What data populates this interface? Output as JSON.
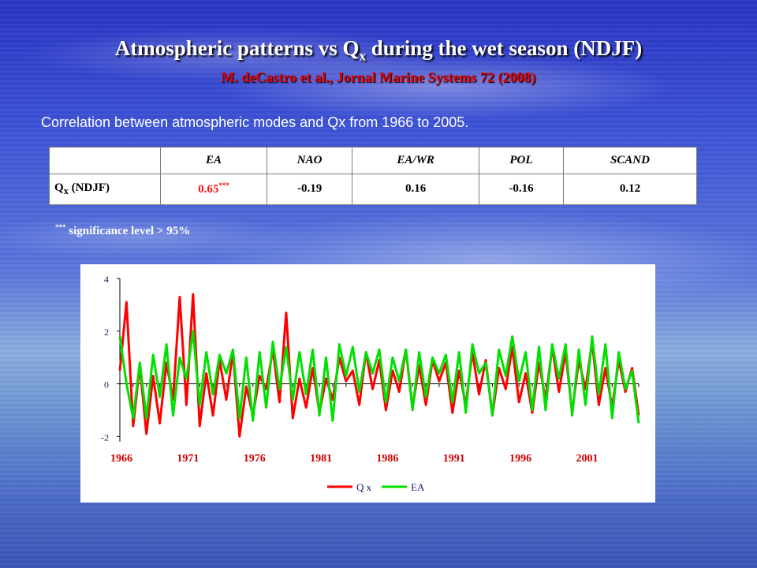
{
  "slide": {
    "title_main": "Atmospheric patterns vs Q",
    "title_sub": "x",
    "title_rest": " during the wet season (NDJF)",
    "citation": "M. deCastro et al., Jornal Marine Systems 72 (2008)",
    "description": "Correlation between atmospheric modes and Qx from 1966 to 2005."
  },
  "table": {
    "headers": [
      "EA",
      "NAO",
      "EA/WR",
      "POL",
      "SCAND"
    ],
    "row_label_main": "Q",
    "row_label_sub": "x",
    "row_label_rest": " (NDJF)",
    "first_value": "0.65",
    "first_value_sup": "***",
    "values": [
      "-0.19",
      "0.16",
      "-0.16",
      "0.12"
    ]
  },
  "note": {
    "sup": "***",
    "text": " significance level > 95%"
  },
  "colors": {
    "qx": "#ff0000",
    "ea": "#00e000",
    "highlight": "#ff1010",
    "axis": "#000000",
    "tick_labels": "#1a1a66",
    "year_labels": "#cc0000"
  },
  "chart_data": {
    "type": "line",
    "title": "",
    "xlabel": "",
    "ylabel": "",
    "xlim": [
      1966,
      2005
    ],
    "ylim": [
      -2.2,
      4
    ],
    "y_ticks": [
      "4",
      "2",
      "0",
      "-2"
    ],
    "x_ticks": [
      "1966",
      "1971",
      "1976",
      "1981",
      "1986",
      "1991",
      "1996",
      "2001"
    ],
    "grid": false,
    "legend_position": "bottom",
    "legend": [
      "Q x",
      "EA"
    ],
    "x": [
      1966.0,
      1966.5,
      1967.0,
      1967.5,
      1968.0,
      1968.5,
      1969.0,
      1969.5,
      1970.0,
      1970.5,
      1971.0,
      1971.5,
      1972.0,
      1972.5,
      1973.0,
      1973.5,
      1974.0,
      1974.5,
      1975.0,
      1975.5,
      1976.0,
      1976.5,
      1977.0,
      1977.5,
      1978.0,
      1978.5,
      1979.0,
      1979.5,
      1980.0,
      1980.5,
      1981.0,
      1981.5,
      1982.0,
      1982.5,
      1983.0,
      1983.5,
      1984.0,
      1984.5,
      1985.0,
      1985.5,
      1986.0,
      1986.5,
      1987.0,
      1987.5,
      1988.0,
      1988.5,
      1989.0,
      1989.5,
      1990.0,
      1990.5,
      1991.0,
      1991.5,
      1992.0,
      1992.5,
      1993.0,
      1993.5,
      1994.0,
      1994.5,
      1995.0,
      1995.5,
      1996.0,
      1996.5,
      1997.0,
      1997.5,
      1998.0,
      1998.5,
      1999.0,
      1999.5,
      2000.0,
      2000.5,
      2001.0,
      2001.5,
      2002.0,
      2002.5,
      2003.0,
      2003.5,
      2004.0,
      2004.5,
      2005.0
    ],
    "series": [
      {
        "name": "Q x",
        "values": [
          0.5,
          3.1,
          -1.6,
          0.7,
          -1.9,
          0.3,
          -1.5,
          0.8,
          -0.6,
          3.3,
          -0.8,
          3.4,
          -1.6,
          0.4,
          -1.2,
          0.9,
          -0.6,
          1.2,
          -2.0,
          -0.1,
          -1.2,
          0.3,
          -0.2,
          1.3,
          -0.7,
          2.7,
          -1.3,
          0.2,
          -0.9,
          0.6,
          -1.1,
          0.2,
          -0.6,
          1.0,
          0.1,
          0.5,
          -0.8,
          1.2,
          -0.2,
          0.9,
          -1.0,
          0.5,
          -0.3,
          1.3,
          -0.9,
          0.7,
          -0.8,
          0.9,
          0.1,
          0.8,
          -1.1,
          0.5,
          -0.8,
          1.2,
          -0.4,
          0.9,
          -1.2,
          0.6,
          -0.2,
          1.4,
          -0.7,
          0.4,
          -1.1,
          0.8,
          -0.6,
          1.4,
          -0.3,
          1.2,
          -1.1,
          0.9,
          -0.2,
          1.6,
          -0.8,
          0.6,
          -0.9,
          0.9,
          -0.3,
          0.6,
          -1.2
        ]
      },
      {
        "name": "EA",
        "values": [
          1.8,
          0.0,
          -1.3,
          0.8,
          -1.3,
          1.1,
          -0.5,
          1.5,
          -1.2,
          1.0,
          0.2,
          2.0,
          -0.8,
          1.2,
          -0.4,
          1.1,
          0.4,
          1.3,
          -1.3,
          1.0,
          -1.4,
          1.2,
          -0.9,
          1.6,
          -0.2,
          1.4,
          -0.6,
          1.2,
          -0.4,
          1.3,
          -1.2,
          1.0,
          -1.4,
          1.5,
          0.3,
          1.4,
          -0.3,
          1.2,
          0.4,
          1.3,
          -0.7,
          1.0,
          0.1,
          1.3,
          -1.0,
          1.2,
          -0.5,
          1.0,
          0.4,
          1.1,
          -0.7,
          1.2,
          -1.1,
          1.5,
          0.4,
          0.8,
          -1.2,
          1.3,
          0.3,
          1.8,
          0.1,
          1.2,
          -1.0,
          1.4,
          -1.0,
          1.5,
          0.2,
          1.5,
          -1.2,
          1.3,
          -0.8,
          1.8,
          -0.4,
          1.5,
          -1.3,
          1.2,
          -0.2,
          0.5,
          -1.5
        ]
      }
    ]
  }
}
